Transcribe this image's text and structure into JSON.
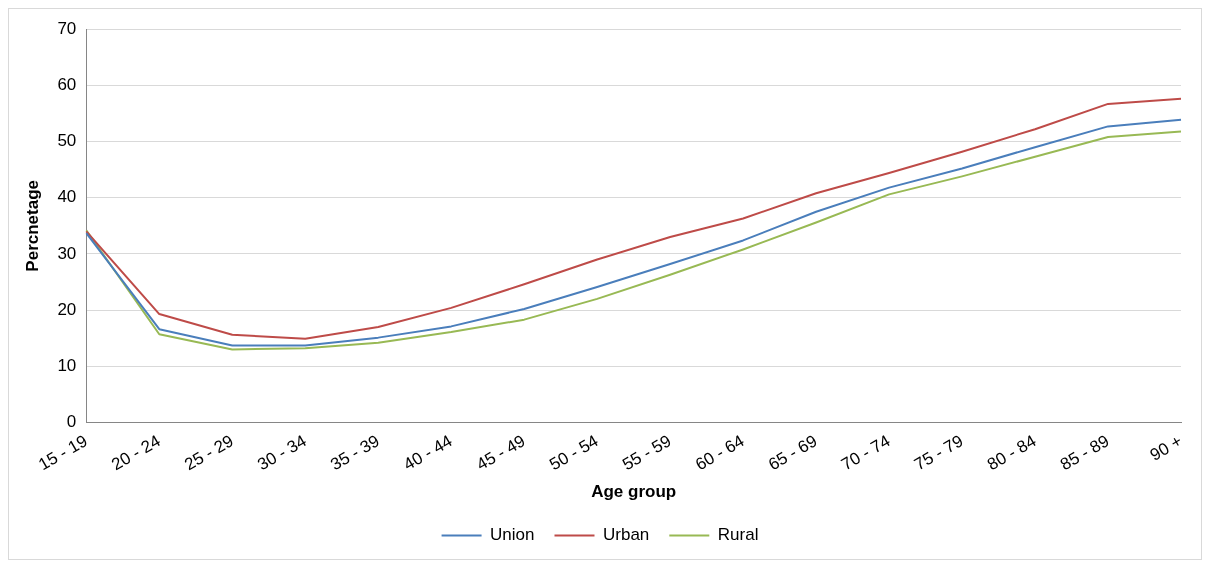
{
  "chart_data": {
    "type": "line",
    "xlabel": "Age group",
    "ylabel": "Percnetage",
    "categories": [
      "15 - 19",
      "20 - 24",
      "25 - 29",
      "30 - 34",
      "35 - 39",
      "40 - 44",
      "45 - 49",
      "50 - 54",
      "55 - 59",
      "60 - 64",
      "65 - 69",
      "70 - 74",
      "75 - 79",
      "80 - 84",
      "85 - 89",
      "90 +"
    ],
    "series": [
      {
        "name": "Union",
        "color": "#4a7ebb",
        "values": [
          33.7,
          16.6,
          13.7,
          13.7,
          15.1,
          17.1,
          20.2,
          24.1,
          28.2,
          32.4,
          37.5,
          41.8,
          45.2,
          49.0,
          52.7,
          53.9
        ]
      },
      {
        "name": "Urban",
        "color": "#be4b48",
        "values": [
          34.0,
          19.3,
          15.6,
          14.9,
          17.0,
          20.4,
          24.6,
          29.0,
          33.0,
          36.3,
          40.8,
          44.4,
          48.2,
          52.2,
          56.7,
          57.6
        ]
      },
      {
        "name": "Rural",
        "color": "#98b954",
        "values": [
          34.2,
          15.7,
          13.0,
          13.2,
          14.2,
          16.1,
          18.3,
          22.0,
          26.3,
          30.8,
          35.6,
          40.6,
          43.8,
          47.3,
          50.8,
          51.8
        ]
      }
    ],
    "ylim": [
      0,
      70
    ],
    "yticks": [
      0,
      10,
      20,
      30,
      40,
      50,
      60,
      70
    ],
    "grid": "y",
    "legend": "bottom",
    "marker": "none",
    "line_style": "solid"
  }
}
